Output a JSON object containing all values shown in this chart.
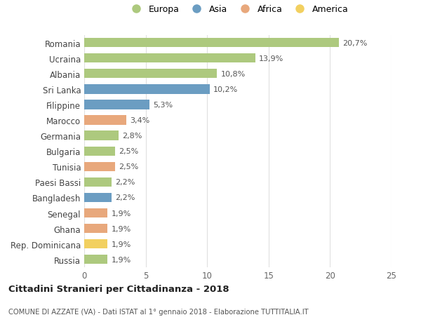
{
  "countries": [
    "Romania",
    "Ucraina",
    "Albania",
    "Sri Lanka",
    "Filippine",
    "Marocco",
    "Germania",
    "Bulgaria",
    "Tunisia",
    "Paesi Bassi",
    "Bangladesh",
    "Senegal",
    "Ghana",
    "Rep. Dominicana",
    "Russia"
  ],
  "values": [
    20.7,
    13.9,
    10.8,
    10.2,
    5.3,
    3.4,
    2.8,
    2.5,
    2.5,
    2.2,
    2.2,
    1.9,
    1.9,
    1.9,
    1.9
  ],
  "continents": [
    "Europa",
    "Europa",
    "Europa",
    "Asia",
    "Asia",
    "Africa",
    "Europa",
    "Europa",
    "Africa",
    "Europa",
    "Asia",
    "Africa",
    "Africa",
    "America",
    "Europa"
  ],
  "labels": [
    "20,7%",
    "13,9%",
    "10,8%",
    "10,2%",
    "5,3%",
    "3,4%",
    "2,8%",
    "2,5%",
    "2,5%",
    "2,2%",
    "2,2%",
    "1,9%",
    "1,9%",
    "1,9%",
    "1,9%"
  ],
  "continent_colors": {
    "Europa": "#adc97e",
    "Asia": "#6b9dc2",
    "Africa": "#e8a87c",
    "America": "#f2d060"
  },
  "xlim": [
    0,
    25
  ],
  "xticks": [
    0,
    5,
    10,
    15,
    20,
    25
  ],
  "title": "Cittadini Stranieri per Cittadinanza - 2018",
  "subtitle": "COMUNE DI AZZATE (VA) - Dati ISTAT al 1° gennaio 2018 - Elaborazione TUTTITALIA.IT",
  "legend_labels": [
    "Europa",
    "Asia",
    "Africa",
    "America"
  ],
  "background_color": "#ffffff",
  "bar_height": 0.6,
  "grid_color": "#e0e0e0"
}
